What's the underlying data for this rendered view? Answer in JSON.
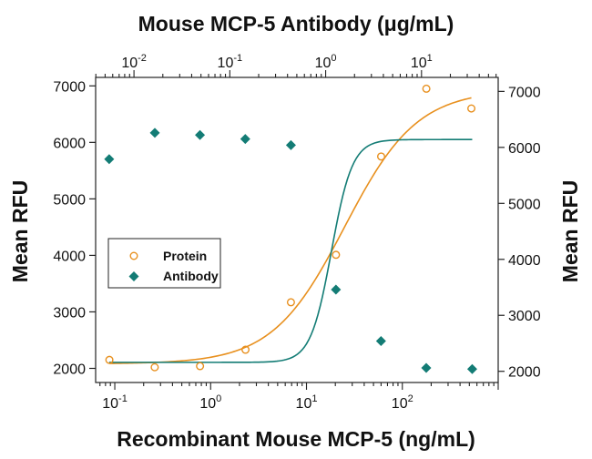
{
  "chart_data": {
    "type": "scatter",
    "title": "Mouse MCP-5 Antibody (μg/mL)",
    "xlabel": "Recombinant Mouse MCP-5 (ng/mL)",
    "ylabel": "Mean RFU",
    "ylabel_right": "Mean RFU",
    "x_scale": "log",
    "xlim": [
      0.0631,
      1000
    ],
    "x_ticks": [
      {
        "value": 0.1,
        "base": "10",
        "exp": "-1"
      },
      {
        "value": 1,
        "base": "10",
        "exp": "0"
      },
      {
        "value": 10,
        "base": "10",
        "exp": "1"
      },
      {
        "value": 100,
        "base": "10",
        "exp": "2"
      }
    ],
    "x_top_scale": "log",
    "x_top_lim": [
      0.00398,
      63.1
    ],
    "x_top_ticks": [
      {
        "value": 0.01,
        "base": "10",
        "exp": "-2"
      },
      {
        "value": 0.1,
        "base": "10",
        "exp": "-1"
      },
      {
        "value": 1,
        "base": "10",
        "exp": "0"
      },
      {
        "value": 10,
        "base": "10",
        "exp": "1"
      }
    ],
    "ylim": [
      1750,
      7150
    ],
    "y_ticks_left": [
      2000,
      3000,
      4000,
      5000,
      6000,
      7000
    ],
    "y_right_lim": [
      1800,
      7250
    ],
    "y_ticks_right": [
      2000,
      3000,
      4000,
      5000,
      6000,
      7000
    ],
    "legend": {
      "placement": "middle-left",
      "entries": [
        {
          "label": "Protein",
          "series": "Protein",
          "marker": "circle"
        },
        {
          "label": "Antibody",
          "series": "Antibody",
          "marker": "diamond"
        }
      ]
    },
    "series": [
      {
        "name": "Protein",
        "color": "#E8901E",
        "marker": "open-circle",
        "x_axis": "bottom",
        "y_axis": "left",
        "points": [
          {
            "x": 0.0878,
            "y": 2150
          },
          {
            "x": 0.261,
            "y": 2020
          },
          {
            "x": 0.775,
            "y": 2040
          },
          {
            "x": 2.31,
            "y": 2330
          },
          {
            "x": 6.88,
            "y": 3170
          },
          {
            "x": 20.3,
            "y": 4010
          },
          {
            "x": 60.1,
            "y": 5750
          },
          {
            "x": 178,
            "y": 6950
          },
          {
            "x": 525,
            "y": 6600
          }
        ],
        "fit": {
          "type": "4PL",
          "bottom": 2080,
          "top": 6930,
          "ec50": 25,
          "hill": 1.15
        }
      },
      {
        "name": "Antibody",
        "color": "#137C75",
        "marker": "filled-diamond",
        "x_axis": "top",
        "y_axis": "right",
        "points": [
          {
            "x": 0.00551,
            "y": 5790
          },
          {
            "x": 0.0165,
            "y": 6260
          },
          {
            "x": 0.0488,
            "y": 6220
          },
          {
            "x": 0.145,
            "y": 6150
          },
          {
            "x": 0.434,
            "y": 6040
          },
          {
            "x": 1.28,
            "y": 3460
          },
          {
            "x": 3.78,
            "y": 2540
          },
          {
            "x": 11.2,
            "y": 2060
          },
          {
            "x": 33.8,
            "y": 2040
          }
        ],
        "fit": {
          "type": "4PL",
          "bottom": 2160,
          "top": 6140,
          "ec50": 1.15,
          "hill": 4.0
        }
      }
    ],
    "grid": false
  }
}
